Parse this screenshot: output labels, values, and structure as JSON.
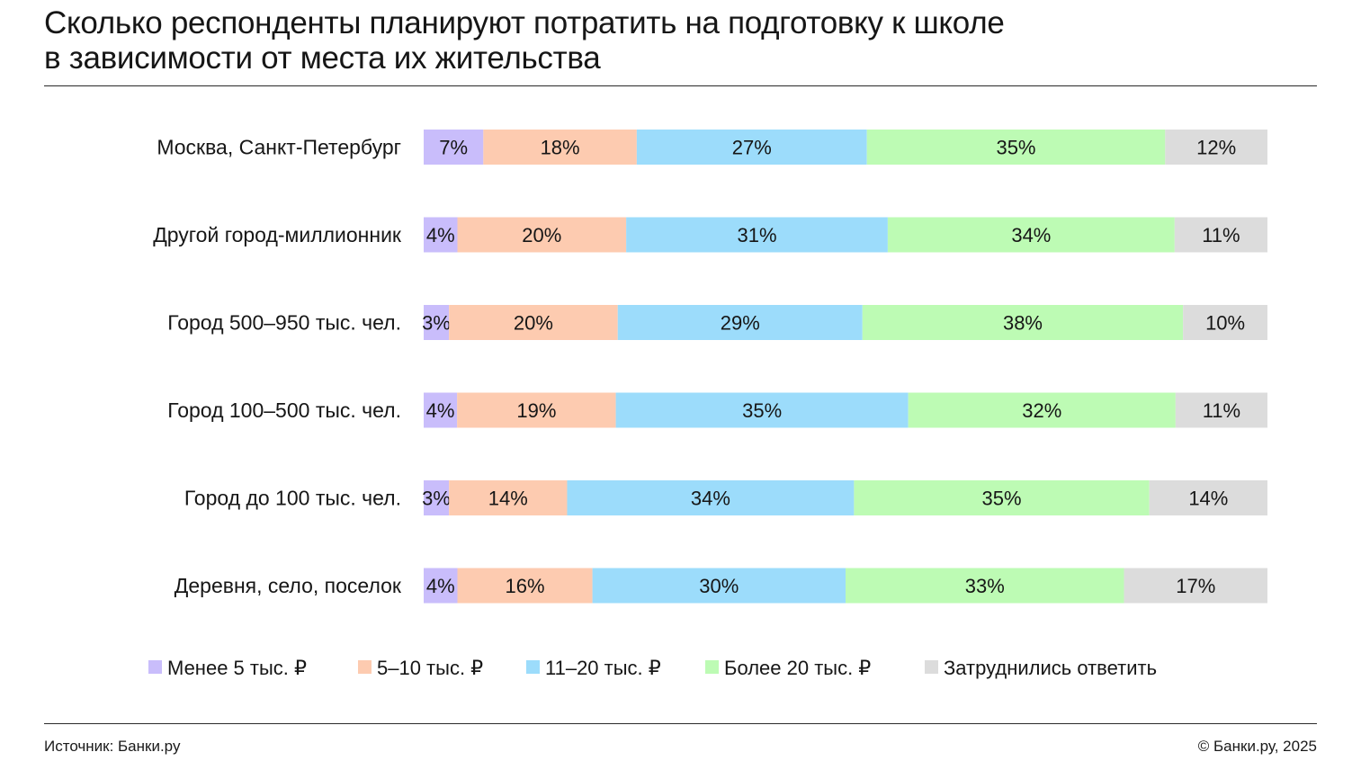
{
  "title_lines": [
    "Сколько респонденты планируют потратить на подготовку к школе",
    "в зависимости от места их жительства"
  ],
  "footer": {
    "source": "Источник: Банки.ру",
    "copyright": "© Банки.ру, 2025"
  },
  "colors": {
    "series": [
      "#c9bdfb",
      "#fdcbb0",
      "#9cdcfb",
      "#bdfbb4",
      "#dcdcdc"
    ]
  },
  "chart_data": {
    "type": "bar",
    "orientation": "horizontal",
    "stacked": true,
    "unit": "%",
    "legend_position": "bottom",
    "categories": [
      "Москва, Санкт-Петербург",
      "Другой город-миллионник",
      "Город 500–950 тыс. чел.",
      "Город 100–500 тыс. чел.",
      "Город до 100 тыс. чел.",
      "Деревня, село, поселок"
    ],
    "series": [
      {
        "name": "Менее 5 тыс. ₽",
        "values": [
          7,
          4,
          3,
          4,
          3,
          4
        ]
      },
      {
        "name": "5–10 тыс. ₽",
        "values": [
          18,
          20,
          20,
          19,
          14,
          16
        ]
      },
      {
        "name": "11–20 тыс. ₽",
        "values": [
          27,
          31,
          29,
          35,
          34,
          30
        ]
      },
      {
        "name": "Более 20 тыс. ₽",
        "values": [
          35,
          34,
          38,
          32,
          35,
          33
        ]
      },
      {
        "name": "Затруднились ответить",
        "values": [
          12,
          11,
          10,
          11,
          14,
          17
        ]
      }
    ]
  }
}
